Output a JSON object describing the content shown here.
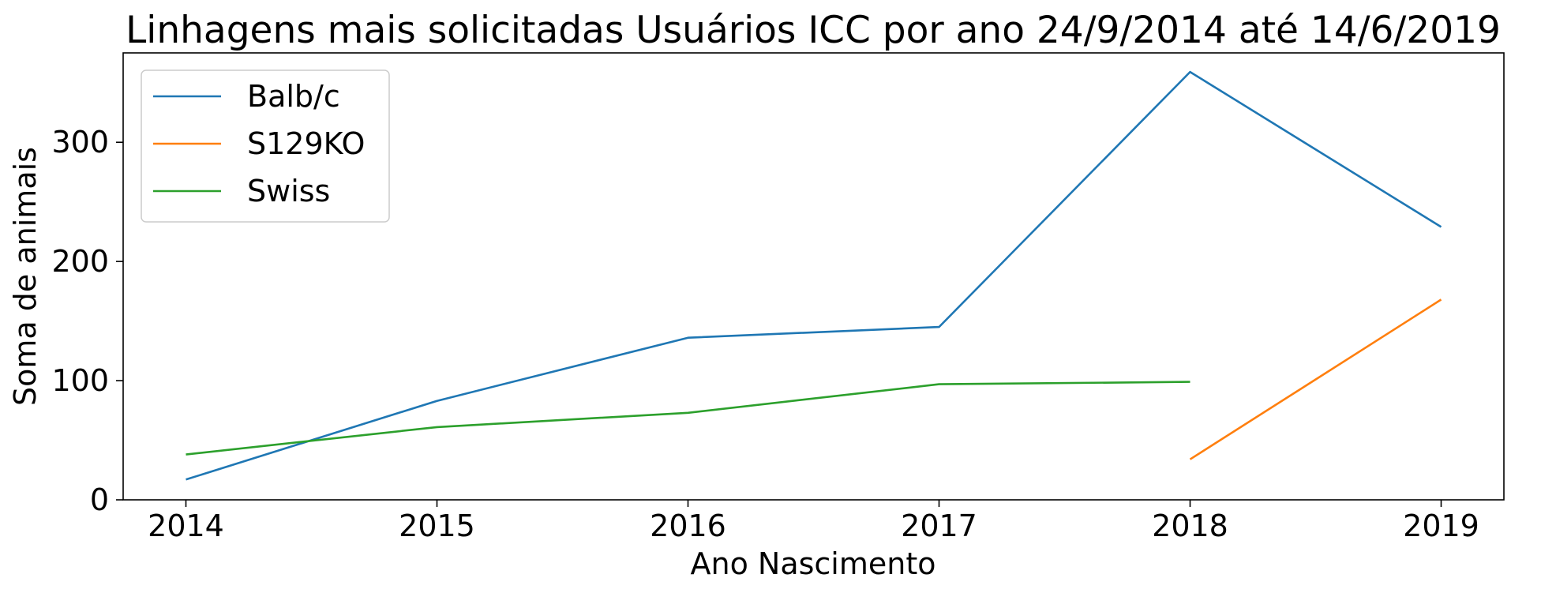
{
  "chart_data": {
    "type": "line",
    "title": "Linhagens mais solicitadas Usuários ICC por ano 24/9/2014 até 14/6/2019",
    "xlabel": "Ano Nascimento",
    "ylabel": "Soma de animais",
    "x": [
      2014,
      2015,
      2016,
      2017,
      2018,
      2019
    ],
    "xlim": [
      2013.75,
      2019.25
    ],
    "ylim": [
      0,
      375
    ],
    "xticks": [
      "2014",
      "2015",
      "2016",
      "2017",
      "2018",
      "2019"
    ],
    "yticks": [
      0,
      100,
      200,
      300
    ],
    "grid": false,
    "legend_position": "top-left",
    "series": [
      {
        "name": "Balb/c",
        "color": "#1f77b4",
        "values": [
          17,
          83,
          136,
          145,
          359,
          229
        ]
      },
      {
        "name": "S129KO",
        "color": "#ff7f0e",
        "values": [
          null,
          null,
          null,
          null,
          34,
          168
        ]
      },
      {
        "name": "Swiss",
        "color": "#2ca02c",
        "values": [
          38,
          61,
          73,
          97,
          99,
          null
        ]
      }
    ]
  }
}
